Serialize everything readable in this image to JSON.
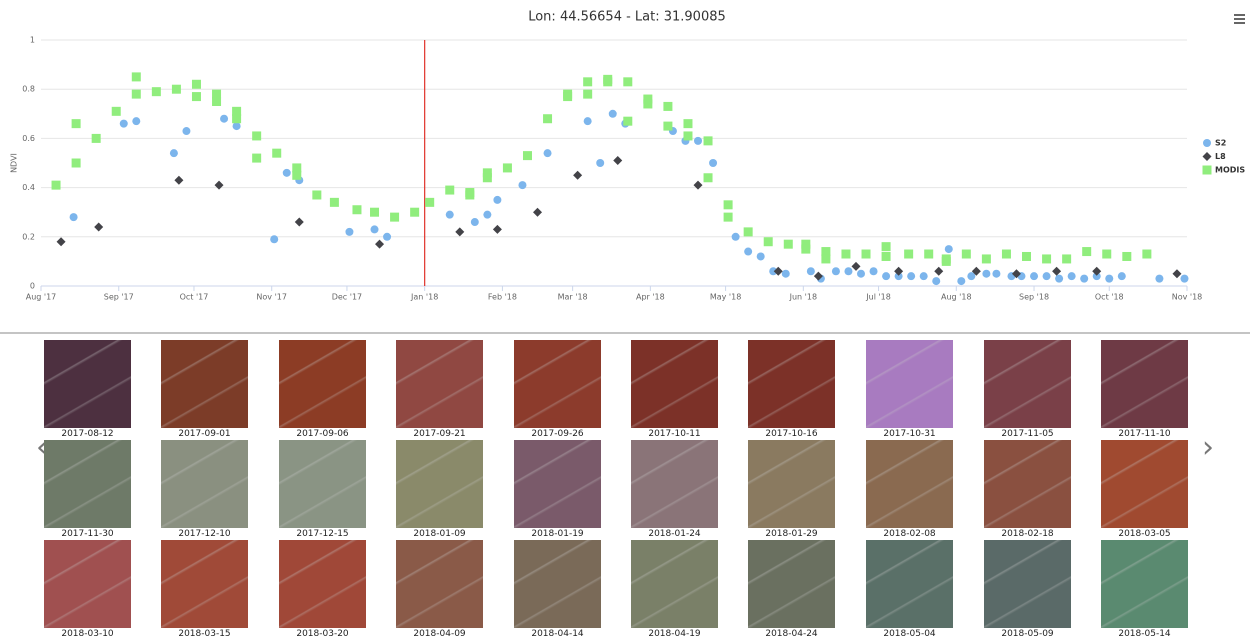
{
  "chart_data": {
    "type": "scatter",
    "title": "Lon: 44.56654 - Lat: 31.90085",
    "y_label": "NDVI",
    "xlim": [
      0,
      457
    ],
    "xticks": [
      {
        "value": 0,
        "label": "Aug '17"
      },
      {
        "value": 31,
        "label": "Sep '17"
      },
      {
        "value": 61,
        "label": "Oct '17"
      },
      {
        "value": 92,
        "label": "Nov '17"
      },
      {
        "value": 122,
        "label": "Dec '17"
      },
      {
        "value": 153,
        "label": "Jan '18"
      },
      {
        "value": 184,
        "label": "Feb '18"
      },
      {
        "value": 212,
        "label": "Mar '18"
      },
      {
        "value": 243,
        "label": "Apr '18"
      },
      {
        "value": 273,
        "label": "May '18"
      },
      {
        "value": 304,
        "label": "Jun '18"
      },
      {
        "value": 334,
        "label": "Jul '18"
      },
      {
        "value": 365,
        "label": "Aug '18"
      },
      {
        "value": 396,
        "label": "Sep '18"
      },
      {
        "value": 426,
        "label": "Oct '18"
      },
      {
        "value": 457,
        "label": "Nov '18"
      }
    ],
    "ylim": [
      0,
      1
    ],
    "yticks": [
      0,
      0.2,
      0.4,
      0.6,
      0.8,
      1
    ],
    "grid": true,
    "legend": "right",
    "plot_line": 153,
    "plot_line_color": "#e0322a",
    "series": [
      {
        "name": "S2",
        "color": "#7cb5ec",
        "marker": "circle",
        "x": [
          13,
          33,
          38,
          53,
          58,
          73,
          78,
          93,
          98,
          103,
          123,
          133,
          138,
          163,
          173,
          178,
          182,
          192,
          202,
          218,
          223,
          228,
          233,
          252,
          257,
          262,
          268,
          277,
          282,
          287,
          292,
          297,
          307,
          311,
          317,
          322,
          327,
          332,
          337,
          342,
          347,
          352,
          357,
          362,
          367,
          371,
          377,
          381,
          387,
          391,
          396,
          401,
          406,
          411,
          416,
          421,
          426,
          431,
          446,
          456
        ],
        "values": [
          0.28,
          0.66,
          0.67,
          0.54,
          0.63,
          0.68,
          0.65,
          0.19,
          0.46,
          0.43,
          0.22,
          0.23,
          0.2,
          0.29,
          0.26,
          0.29,
          0.35,
          0.41,
          0.54,
          0.67,
          0.5,
          0.7,
          0.66,
          0.63,
          0.59,
          0.59,
          0.5,
          0.2,
          0.14,
          0.12,
          0.06,
          0.05,
          0.06,
          0.03,
          0.06,
          0.06,
          0.05,
          0.06,
          0.04,
          0.04,
          0.04,
          0.04,
          0.02,
          0.15,
          0.02,
          0.04,
          0.05,
          0.05,
          0.04,
          0.04,
          0.04,
          0.04,
          0.03,
          0.04,
          0.03,
          0.04,
          0.03,
          0.04,
          0.03,
          0.03
        ]
      },
      {
        "name": "L8",
        "color": "#434348",
        "marker": "diamond",
        "x": [
          8,
          23,
          55,
          71,
          103,
          135,
          167,
          182,
          198,
          214,
          230,
          262,
          294,
          310,
          325,
          342,
          358,
          373,
          389,
          405,
          421,
          453
        ],
        "values": [
          0.18,
          0.24,
          0.43,
          0.41,
          0.26,
          0.17,
          0.22,
          0.23,
          0.3,
          0.45,
          0.51,
          0.41,
          0.06,
          0.04,
          0.08,
          0.06,
          0.06,
          0.06,
          0.05,
          0.06,
          0.06,
          0.05
        ]
      },
      {
        "name": "MODIS",
        "color": "#90ed7d",
        "marker": "square",
        "x": [
          6,
          14,
          14,
          22,
          30,
          38,
          38,
          46,
          54,
          62,
          62,
          70,
          70,
          78,
          78,
          86,
          86,
          94,
          102,
          102,
          110,
          117,
          126,
          133,
          141,
          149,
          155,
          163,
          171,
          171,
          178,
          178,
          186,
          194,
          202,
          210,
          210,
          218,
          218,
          226,
          226,
          234,
          234,
          242,
          242,
          250,
          250,
          258,
          258,
          266,
          266,
          274,
          274,
          282,
          290,
          298,
          305,
          305,
          313,
          313,
          321,
          329,
          337,
          337,
          346,
          354,
          361,
          361,
          369,
          377,
          385,
          393,
          401,
          409,
          417,
          425,
          433,
          441
        ],
        "values": [
          0.41,
          0.66,
          0.5,
          0.6,
          0.71,
          0.85,
          0.78,
          0.79,
          0.8,
          0.82,
          0.77,
          0.78,
          0.75,
          0.71,
          0.68,
          0.61,
          0.52,
          0.54,
          0.48,
          0.45,
          0.37,
          0.34,
          0.31,
          0.3,
          0.28,
          0.3,
          0.34,
          0.39,
          0.38,
          0.37,
          0.46,
          0.44,
          0.48,
          0.53,
          0.68,
          0.78,
          0.77,
          0.83,
          0.78,
          0.84,
          0.83,
          0.83,
          0.67,
          0.76,
          0.74,
          0.73,
          0.65,
          0.66,
          0.61,
          0.59,
          0.44,
          0.33,
          0.28,
          0.22,
          0.18,
          0.17,
          0.17,
          0.15,
          0.14,
          0.11,
          0.13,
          0.13,
          0.16,
          0.12,
          0.13,
          0.13,
          0.11,
          0.1,
          0.13,
          0.11,
          0.13,
          0.12,
          0.11,
          0.11,
          0.14,
          0.13,
          0.12,
          0.13
        ]
      }
    ]
  },
  "gallery": {
    "rows": [
      [
        {
          "date": "2017-08-12",
          "color": "#4d3040"
        },
        {
          "date": "2017-09-01",
          "color": "#7c3c28"
        },
        {
          "date": "2017-09-06",
          "color": "#8c3c25"
        },
        {
          "date": "2017-09-21",
          "color": "#904842"
        },
        {
          "date": "2017-09-26",
          "color": "#8c3b2c"
        },
        {
          "date": "2017-10-11",
          "color": "#7c3128"
        },
        {
          "date": "2017-10-16",
          "color": "#7c3128"
        },
        {
          "date": "2017-10-31",
          "color": "#a87bc0"
        },
        {
          "date": "2017-11-05",
          "color": "#7a4048"
        },
        {
          "date": "2017-11-10",
          "color": "#6e3a45"
        }
      ],
      [
        {
          "date": "2017-11-30",
          "color": "#6e7a68"
        },
        {
          "date": "2017-12-10",
          "color": "#8a9080"
        },
        {
          "date": "2017-12-15",
          "color": "#8a9484"
        },
        {
          "date": "2018-01-09",
          "color": "#8a8a6a"
        },
        {
          "date": "2018-01-19",
          "color": "#7a5a6a"
        },
        {
          "date": "2018-01-24",
          "color": "#8a7478"
        },
        {
          "date": "2018-01-29",
          "color": "#8a7a60"
        },
        {
          "date": "2018-02-08",
          "color": "#8a6a50"
        },
        {
          "date": "2018-02-18",
          "color": "#8a5040"
        },
        {
          "date": "2018-03-05",
          "color": "#a04a30"
        }
      ],
      [
        {
          "date": "2018-03-10",
          "color": "#a05050"
        },
        {
          "date": "2018-03-15",
          "color": "#a04a38"
        },
        {
          "date": "2018-03-20",
          "color": "#a04838"
        },
        {
          "date": "2018-04-09",
          "color": "#8a5a48"
        },
        {
          "date": "2018-04-14",
          "color": "#7a6a58"
        },
        {
          "date": "2018-04-19",
          "color": "#7a8068"
        },
        {
          "date": "2018-04-24",
          "color": "#6a7060"
        },
        {
          "date": "2018-05-04",
          "color": "#5a7068"
        },
        {
          "date": "2018-05-09",
          "color": "#5a6a68"
        },
        {
          "date": "2018-05-14",
          "color": "#5a8a70"
        }
      ]
    ]
  }
}
